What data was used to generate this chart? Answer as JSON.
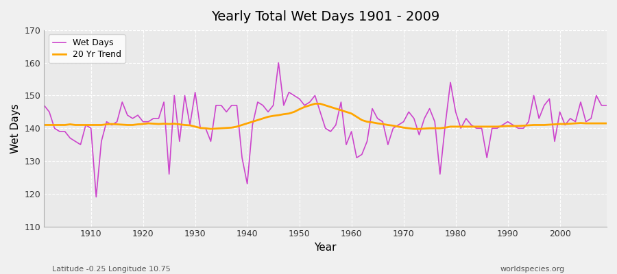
{
  "title": "Yearly Total Wet Days 1901 - 2009",
  "xlabel": "Year",
  "ylabel": "Wet Days",
  "subtitle_left": "Latitude -0.25 Longitude 10.75",
  "subtitle_right": "worldspecies.org",
  "legend_wet": "Wet Days",
  "legend_trend": "20 Yr Trend",
  "ylim": [
    110,
    170
  ],
  "xlim": [
    1901,
    2009
  ],
  "yticks": [
    110,
    120,
    130,
    140,
    150,
    160,
    170
  ],
  "xticks": [
    1910,
    1920,
    1930,
    1940,
    1950,
    1960,
    1970,
    1980,
    1990,
    2000
  ],
  "wet_color": "#cc44cc",
  "trend_color": "#ffa500",
  "bg_color": "#f0f0f0",
  "plot_bg_color": "#eaeaea",
  "grid_color": "#ffffff",
  "wet_days": [
    147,
    145,
    140,
    139,
    139,
    137,
    136,
    135,
    141,
    140,
    119,
    136,
    142,
    141,
    142,
    148,
    144,
    143,
    144,
    142,
    142,
    143,
    143,
    148,
    126,
    150,
    136,
    150,
    141,
    151,
    140,
    140,
    136,
    147,
    147,
    145,
    147,
    147,
    131,
    123,
    141,
    148,
    147,
    145,
    147,
    160,
    147,
    151,
    150,
    149,
    147,
    148,
    150,
    145,
    140,
    139,
    141,
    148,
    135,
    139,
    131,
    132,
    136,
    146,
    143,
    142,
    135,
    140,
    141,
    142,
    145,
    143,
    138,
    143,
    146,
    142,
    126,
    141,
    154,
    145,
    140,
    143,
    141,
    140,
    140,
    131,
    140,
    140,
    141,
    142,
    141,
    140,
    140,
    142,
    150,
    143,
    147,
    149,
    136,
    145,
    141,
    143,
    142,
    148,
    142,
    143,
    150,
    147,
    147
  ],
  "trend_days": [
    141.0,
    141.0,
    141.0,
    141.0,
    141.0,
    141.2,
    141.0,
    141.0,
    141.0,
    141.0,
    141.0,
    141.0,
    141.2,
    141.3,
    141.2,
    141.1,
    141.0,
    141.0,
    141.2,
    141.3,
    141.5,
    141.4,
    141.3,
    141.4,
    141.3,
    141.4,
    141.2,
    141.0,
    140.9,
    140.5,
    140.1,
    140.0,
    139.8,
    139.9,
    140.0,
    140.1,
    140.2,
    140.5,
    141.0,
    141.5,
    142.0,
    142.5,
    143.0,
    143.5,
    143.8,
    144.0,
    144.3,
    144.5,
    145.0,
    145.8,
    146.5,
    147.0,
    147.5,
    147.5,
    147.0,
    146.5,
    146.0,
    145.5,
    145.0,
    144.5,
    143.5,
    142.5,
    142.0,
    141.8,
    141.5,
    141.3,
    141.0,
    140.8,
    140.5,
    140.2,
    140.0,
    139.8,
    139.8,
    139.9,
    140.0,
    140.0,
    140.0,
    140.2,
    140.5,
    140.5,
    140.5,
    140.5,
    140.5,
    140.5,
    140.5,
    140.5,
    140.5,
    140.5,
    140.6,
    140.7,
    140.7,
    140.7,
    140.8,
    140.9,
    141.0,
    141.0,
    141.0,
    141.1,
    141.2,
    141.3,
    141.3,
    141.4,
    141.5,
    141.6,
    141.5,
    141.5,
    141.5,
    141.5,
    141.5
  ]
}
